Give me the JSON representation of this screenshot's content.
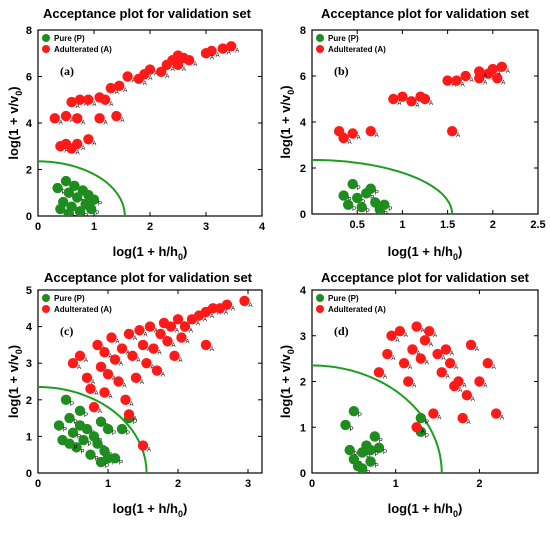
{
  "colors": {
    "pure": "#1e8c1e",
    "adulterated": "#ff1a1a",
    "boundary": "#1e9e1e"
  },
  "chart_data": [
    {
      "type": "scatter",
      "panel": "(a)",
      "title": "Acceptance plot for validation set",
      "xlabel": "log(1 + h/h",
      "xlabel_sub": "0",
      "xlabel_end": ")",
      "ylabel": "log(1 + v/v",
      "ylabel_sub": "0",
      "ylabel_end": ")",
      "xlim": [
        0,
        4
      ],
      "ylim": [
        0,
        8
      ],
      "xticks": [
        0,
        1,
        2,
        3,
        4
      ],
      "yticks": [
        0,
        2,
        4,
        6,
        8
      ],
      "boundary": {
        "h": 1.55,
        "v": 2.35
      },
      "legend": [
        "Pure (P)",
        "Adulterated (A)"
      ],
      "series": [
        {
          "name": "Pure (P)",
          "label": "P",
          "points": [
            [
              0.35,
              1.2
            ],
            [
              0.45,
              0.6
            ],
            [
              0.5,
              1.5
            ],
            [
              0.55,
              1.0
            ],
            [
              0.6,
              0.4
            ],
            [
              0.65,
              1.3
            ],
            [
              0.7,
              0.8
            ],
            [
              0.75,
              0.2
            ],
            [
              0.8,
              1.1
            ],
            [
              0.85,
              0.5
            ],
            [
              0.9,
              0.9
            ],
            [
              0.95,
              0.3
            ],
            [
              1.0,
              0.7
            ],
            [
              0.4,
              0.3
            ],
            [
              0.55,
              0.1
            ]
          ]
        },
        {
          "name": "Adulterated (A)",
          "label": "A",
          "points": [
            [
              0.4,
              3.0
            ],
            [
              0.5,
              3.1
            ],
            [
              0.6,
              2.9
            ],
            [
              0.7,
              3.1
            ],
            [
              0.9,
              3.3
            ],
            [
              0.3,
              4.2
            ],
            [
              0.5,
              4.3
            ],
            [
              0.7,
              4.2
            ],
            [
              1.1,
              4.2
            ],
            [
              1.4,
              4.3
            ],
            [
              0.6,
              4.9
            ],
            [
              0.75,
              5.0
            ],
            [
              0.9,
              5.0
            ],
            [
              1.1,
              5.1
            ],
            [
              1.3,
              5.5
            ],
            [
              1.45,
              5.6
            ],
            [
              1.6,
              6.0
            ],
            [
              1.8,
              5.9
            ],
            [
              1.9,
              6.1
            ],
            [
              2.0,
              6.3
            ],
            [
              2.2,
              6.2
            ],
            [
              2.3,
              6.5
            ],
            [
              2.4,
              6.7
            ],
            [
              2.5,
              6.9
            ],
            [
              2.6,
              6.8
            ],
            [
              2.7,
              6.7
            ],
            [
              2.5,
              6.5
            ],
            [
              3.1,
              7.1
            ],
            [
              3.3,
              7.2
            ],
            [
              3.45,
              7.3
            ],
            [
              3.0,
              7.0
            ],
            [
              1.2,
              5.0
            ]
          ]
        }
      ]
    },
    {
      "type": "scatter",
      "panel": "(b)",
      "title": "Acceptance plot for validation set",
      "xlabel": "log(1 + h/h",
      "xlabel_sub": "0",
      "xlabel_end": ")",
      "ylabel": "log(1 + v/v",
      "ylabel_sub": "0",
      "ylabel_end": ")",
      "xlim": [
        0,
        2.5
      ],
      "ylim": [
        0,
        8
      ],
      "xticks": [
        0.5,
        1,
        1.5,
        2,
        2.5
      ],
      "yticks": [
        0,
        2,
        4,
        6,
        8
      ],
      "boundary": {
        "h": 1.55,
        "v": 2.35
      },
      "legend": [
        "Pure (P)",
        "Adulterated (A)"
      ],
      "series": [
        {
          "name": "Pure (P)",
          "label": "P",
          "points": [
            [
              0.35,
              0.8
            ],
            [
              0.45,
              1.3
            ],
            [
              0.5,
              0.7
            ],
            [
              0.55,
              0.3
            ],
            [
              0.6,
              0.9
            ],
            [
              0.7,
              0.5
            ],
            [
              0.75,
              0.2
            ],
            [
              0.8,
              0.4
            ],
            [
              0.4,
              0.4
            ],
            [
              0.65,
              1.1
            ]
          ]
        },
        {
          "name": "Adulterated (A)",
          "label": "A",
          "points": [
            [
              0.3,
              3.6
            ],
            [
              0.35,
              3.3
            ],
            [
              0.45,
              3.5
            ],
            [
              0.65,
              3.6
            ],
            [
              0.9,
              5.0
            ],
            [
              1.0,
              5.1
            ],
            [
              1.1,
              4.9
            ],
            [
              1.2,
              5.1
            ],
            [
              1.25,
              5.0
            ],
            [
              1.5,
              5.8
            ],
            [
              1.6,
              5.8
            ],
            [
              1.7,
              6.0
            ],
            [
              1.85,
              5.9
            ],
            [
              1.95,
              6.1
            ],
            [
              2.0,
              6.3
            ],
            [
              2.1,
              6.4
            ],
            [
              1.85,
              6.2
            ],
            [
              1.55,
              3.6
            ],
            [
              2.05,
              5.9
            ]
          ]
        }
      ]
    },
    {
      "type": "scatter",
      "panel": "(c)",
      "title": "Acceptance plot for validation set",
      "xlabel": "log(1 + h/h",
      "xlabel_sub": "0",
      "xlabel_end": ")",
      "ylabel": "log(1 + v/v",
      "ylabel_sub": "0",
      "ylabel_end": ")",
      "xlim": [
        0,
        3.2
      ],
      "ylim": [
        0,
        5
      ],
      "xticks": [
        0,
        1,
        2,
        3
      ],
      "yticks": [
        0,
        1,
        2,
        3,
        4,
        5
      ],
      "boundary": {
        "h": 1.55,
        "v": 2.35
      },
      "legend": [
        "Pure (P)",
        "Adulterated (A)"
      ],
      "series": [
        {
          "name": "Pure (P)",
          "label": "P",
          "points": [
            [
              0.3,
              1.3
            ],
            [
              0.35,
              0.9
            ],
            [
              0.4,
              2.0
            ],
            [
              0.45,
              1.5
            ],
            [
              0.5,
              1.1
            ],
            [
              0.55,
              0.7
            ],
            [
              0.6,
              1.3
            ],
            [
              0.65,
              0.9
            ],
            [
              0.7,
              1.2
            ],
            [
              0.75,
              0.5
            ],
            [
              0.8,
              1.0
            ],
            [
              0.85,
              0.8
            ],
            [
              0.9,
              1.4
            ],
            [
              0.95,
              0.6
            ],
            [
              1.0,
              1.2
            ],
            [
              0.9,
              0.3
            ],
            [
              1.0,
              0.4
            ],
            [
              1.1,
              0.4
            ],
            [
              0.6,
              1.7
            ],
            [
              0.45,
              0.8
            ],
            [
              1.2,
              1.2
            ],
            [
              1.3,
              1.5
            ]
          ]
        },
        {
          "name": "Adulterated (A)",
          "label": "A",
          "points": [
            [
              0.5,
              3.0
            ],
            [
              0.6,
              3.2
            ],
            [
              0.7,
              2.6
            ],
            [
              0.75,
              2.3
            ],
            [
              0.8,
              1.8
            ],
            [
              0.85,
              3.5
            ],
            [
              0.9,
              2.9
            ],
            [
              0.95,
              3.3
            ],
            [
              1.0,
              2.7
            ],
            [
              1.05,
              3.7
            ],
            [
              1.1,
              3.1
            ],
            [
              1.15,
              2.5
            ],
            [
              1.2,
              3.4
            ],
            [
              1.25,
              2.0
            ],
            [
              1.3,
              3.8
            ],
            [
              1.35,
              3.2
            ],
            [
              1.4,
              2.6
            ],
            [
              1.45,
              3.9
            ],
            [
              1.5,
              3.5
            ],
            [
              1.55,
              3.0
            ],
            [
              1.6,
              4.0
            ],
            [
              1.65,
              3.4
            ],
            [
              1.7,
              2.8
            ],
            [
              1.75,
              3.8
            ],
            [
              1.8,
              4.1
            ],
            [
              1.85,
              3.6
            ],
            [
              1.9,
              4.0
            ],
            [
              1.95,
              3.2
            ],
            [
              2.0,
              4.2
            ],
            [
              2.05,
              3.7
            ],
            [
              2.1,
              4.0
            ],
            [
              2.2,
              4.2
            ],
            [
              2.3,
              4.3
            ],
            [
              2.4,
              4.4
            ],
            [
              2.5,
              4.5
            ],
            [
              2.6,
              4.5
            ],
            [
              2.7,
              4.6
            ],
            [
              2.95,
              4.7
            ],
            [
              2.4,
              3.5
            ],
            [
              1.5,
              0.75
            ],
            [
              1.3,
              1.6
            ],
            [
              0.95,
              2.2
            ]
          ]
        }
      ]
    },
    {
      "type": "scatter",
      "panel": "(d)",
      "title": "Acceptance plot for validation set",
      "xlabel": "log(1 + h/h",
      "xlabel_sub": "0",
      "xlabel_end": ")",
      "ylabel": "log(1 + v/v",
      "ylabel_sub": "0",
      "ylabel_end": ")",
      "xlim": [
        0,
        2.7
      ],
      "ylim": [
        0,
        4
      ],
      "xticks": [
        0,
        1,
        2
      ],
      "yticks": [
        0,
        1,
        2,
        3,
        4
      ],
      "boundary": {
        "h": 1.55,
        "v": 2.35
      },
      "legend": [
        "Pure (P)",
        "Adulterated (A)"
      ],
      "series": [
        {
          "name": "Pure (P)",
          "label": "P",
          "points": [
            [
              0.4,
              1.05
            ],
            [
              0.45,
              0.5
            ],
            [
              0.5,
              0.3
            ],
            [
              0.55,
              0.15
            ],
            [
              0.6,
              0.45
            ],
            [
              0.65,
              0.6
            ],
            [
              0.7,
              0.25
            ],
            [
              0.75,
              0.8
            ],
            [
              0.8,
              0.55
            ],
            [
              0.5,
              1.35
            ],
            [
              0.6,
              0.1
            ],
            [
              1.3,
              0.9
            ],
            [
              1.3,
              1.2
            ],
            [
              0.7,
              0.5
            ]
          ]
        },
        {
          "name": "Adulterated (A)",
          "label": "A",
          "points": [
            [
              0.8,
              2.2
            ],
            [
              0.9,
              2.6
            ],
            [
              0.95,
              3.0
            ],
            [
              1.05,
              3.1
            ],
            [
              1.1,
              2.4
            ],
            [
              1.15,
              2.0
            ],
            [
              1.2,
              2.7
            ],
            [
              1.25,
              3.2
            ],
            [
              1.3,
              2.5
            ],
            [
              1.35,
              2.9
            ],
            [
              1.4,
              3.1
            ],
            [
              1.45,
              1.3
            ],
            [
              1.5,
              2.6
            ],
            [
              1.55,
              2.2
            ],
            [
              1.6,
              2.7
            ],
            [
              1.65,
              2.4
            ],
            [
              1.7,
              1.9
            ],
            [
              1.75,
              2.0
            ],
            [
              1.8,
              1.2
            ],
            [
              1.85,
              1.7
            ],
            [
              1.9,
              2.8
            ],
            [
              2.0,
              2.0
            ],
            [
              2.1,
              2.4
            ],
            [
              2.2,
              1.3
            ],
            [
              1.25,
              1.0
            ]
          ]
        }
      ]
    }
  ]
}
